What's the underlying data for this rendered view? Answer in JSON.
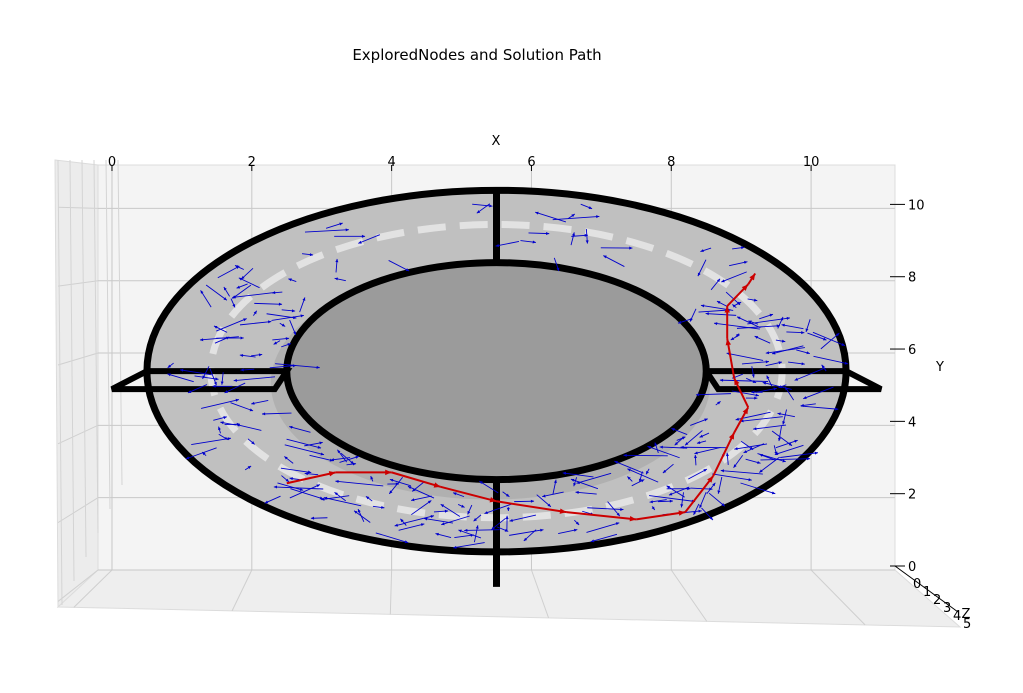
{
  "chart_data": {
    "type": "quiver3d",
    "title": "ExploredNodes and Solution Path",
    "xlabel": "X",
    "ylabel": "Y",
    "zlabel": "Z",
    "xlim": [
      -0.2,
      11.2
    ],
    "ylim": [
      0,
      11.2
    ],
    "zlim": [
      0,
      5
    ],
    "x_ticks": [
      "0",
      "2",
      "4",
      "6",
      "8",
      "10"
    ],
    "y_ticks": [
      "0",
      "2",
      "4",
      "6",
      "8",
      "10"
    ],
    "z_ticks": [
      "0",
      "1",
      "2",
      "3",
      "4",
      "5"
    ],
    "grid": true,
    "colors": {
      "explored": "#0000cc",
      "path": "#cc0000",
      "outer_disk": "#c0c0c0",
      "inner_disk": "#9b9b9b",
      "walls": "#000000",
      "pane": "#f4f4f4"
    },
    "map": {
      "center": [
        5.5,
        5.5
      ],
      "outer_radius": [
        5,
        5
      ],
      "inner_radius": [
        3,
        3
      ]
    },
    "solution_path": [
      [
        2.5,
        2.4
      ],
      [
        3.2,
        2.7
      ],
      [
        4.0,
        2.7
      ],
      [
        4.7,
        2.3
      ],
      [
        5.5,
        1.9
      ],
      [
        6.5,
        1.6
      ],
      [
        7.5,
        1.4
      ],
      [
        8.2,
        1.6
      ],
      [
        8.6,
        2.6
      ],
      [
        8.9,
        3.8
      ],
      [
        9.1,
        4.5
      ],
      [
        8.9,
        5.3
      ],
      [
        8.8,
        6.4
      ],
      [
        8.8,
        7.3
      ],
      [
        9.1,
        7.9
      ],
      [
        9.2,
        8.2
      ]
    ]
  }
}
